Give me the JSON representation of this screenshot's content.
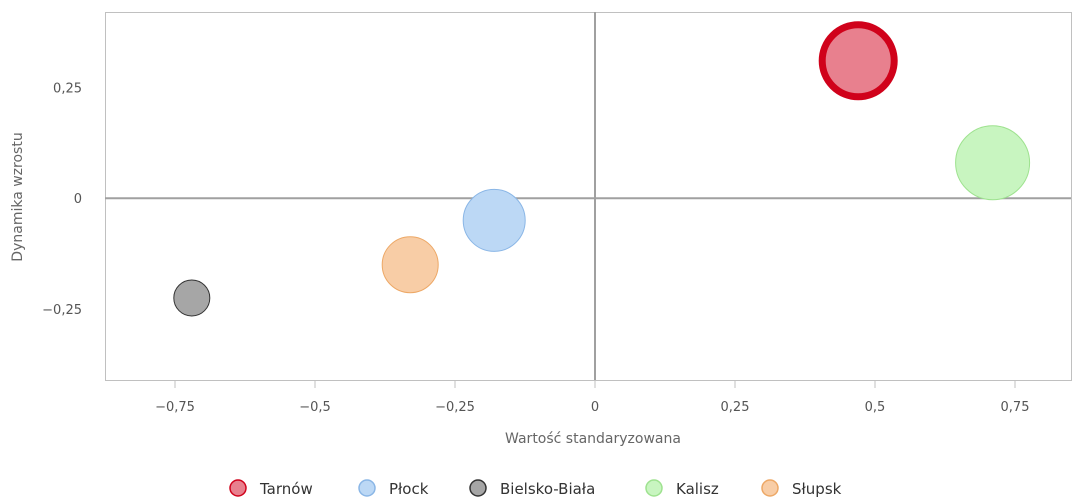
{
  "chart_data": {
    "type": "bubble",
    "title": "",
    "xlabel": "Wartość standaryzowana",
    "ylabel": "Dynamika wzrostu",
    "xlim": [
      -0.875,
      0.85
    ],
    "ylim": [
      -0.41,
      0.42
    ],
    "x_ticks": [
      {
        "value": -0.75,
        "label": "−0,75"
      },
      {
        "value": -0.5,
        "label": "−0,5"
      },
      {
        "value": -0.25,
        "label": "−0,25"
      },
      {
        "value": 0,
        "label": "0"
      },
      {
        "value": 0.25,
        "label": "0,25"
      },
      {
        "value": 0.5,
        "label": "0,5"
      },
      {
        "value": 0.75,
        "label": "0,75"
      }
    ],
    "y_ticks": [
      {
        "value": 0.25,
        "label": "0,25"
      },
      {
        "value": 0,
        "label": "0"
      },
      {
        "value": -0.25,
        "label": "−0,25"
      }
    ],
    "grid": false,
    "zero_lines": true,
    "legend_position": "bottom-center",
    "series": [
      {
        "name": "Tarnów",
        "x": 0.47,
        "y": 0.31,
        "size": 36,
        "fill": "#e8808e",
        "stroke": "#d0021b",
        "highlighted": true
      },
      {
        "name": "Płock",
        "x": -0.18,
        "y": -0.05,
        "size": 31,
        "fill": "#bcd8f5",
        "stroke": "#8ab6e6",
        "highlighted": false
      },
      {
        "name": "Bielsko-Biała",
        "x": -0.72,
        "y": -0.225,
        "size": 18,
        "fill": "#a6a6a6",
        "stroke": "#333333",
        "highlighted": false
      },
      {
        "name": "Kalisz",
        "x": 0.71,
        "y": 0.08,
        "size": 37,
        "fill": "#c8f5c0",
        "stroke": "#9ee28f",
        "highlighted": false
      },
      {
        "name": "Słupsk",
        "x": -0.33,
        "y": -0.15,
        "size": 28,
        "fill": "#f8cda6",
        "stroke": "#eda866",
        "highlighted": false
      }
    ]
  }
}
